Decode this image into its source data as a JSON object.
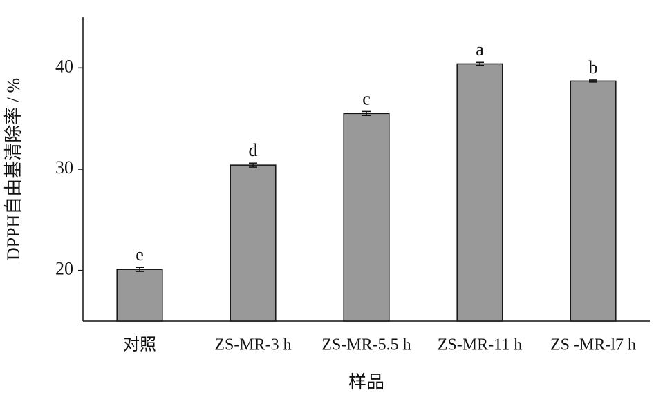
{
  "chart_data": {
    "type": "bar",
    "xlabel": "样品",
    "ylabel": "DPPH自由基清除率 / %",
    "categories": [
      "对照",
      "ZS-MR-3 h",
      "ZS-MR-5.5 h",
      "ZS-MR-11 h",
      "ZS -MR-l7 h"
    ],
    "values": [
      20.1,
      30.4,
      35.5,
      40.4,
      38.7
    ],
    "errors": [
      0.2,
      0.2,
      0.2,
      0.15,
      0.1
    ],
    "letters": [
      "e",
      "d",
      "c",
      "a",
      "b"
    ],
    "color": "#999999",
    "ylim": [
      15,
      45
    ],
    "yticks": [
      20,
      30,
      40
    ],
    "grid": false
  }
}
